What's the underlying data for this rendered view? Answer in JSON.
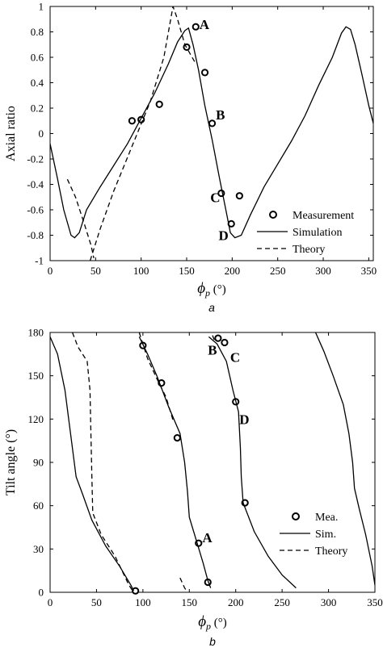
{
  "chart_data": [
    {
      "type": "line",
      "panel_label": "a",
      "xlabel_symbol": "ϕ",
      "xlabel_sub": "p",
      "xlabel_unit": " (°)",
      "ylabel": "Axial ratio",
      "xlim": [
        0,
        355
      ],
      "ylim": [
        -1,
        1
      ],
      "xticks": [
        0,
        50,
        100,
        150,
        200,
        250,
        300,
        350
      ],
      "yticks": [
        -1,
        -0.8,
        -0.6,
        -0.4,
        -0.2,
        0,
        0.2,
        0.4,
        0.6,
        0.8,
        1
      ],
      "ytick_labels": [
        "-1",
        "-0.8",
        "-0.6",
        "-0.4",
        "-0.2",
        "0",
        "0.2",
        "0.4",
        "0.6",
        "0.8",
        "1"
      ],
      "legend": {
        "position": "bottom-right",
        "entries": [
          "Measurement",
          "Simulation",
          "Theory"
        ]
      },
      "series": [
        {
          "role": "measurement",
          "style": "marker",
          "points": [
            [
              90,
              0.1
            ],
            [
              100,
              0.11
            ],
            [
              120,
              0.23
            ],
            [
              150,
              0.68
            ],
            [
              160,
              0.84
            ],
            [
              170,
              0.48
            ],
            [
              178,
              0.08
            ],
            [
              188,
              -0.47
            ],
            [
              199,
              -0.71
            ],
            [
              208,
              -0.49
            ]
          ]
        },
        {
          "role": "simulation",
          "style": "solid",
          "points": [
            [
              0,
              -0.08
            ],
            [
              8,
              -0.35
            ],
            [
              15,
              -0.6
            ],
            [
              23,
              -0.8
            ],
            [
              27,
              -0.82
            ],
            [
              32,
              -0.78
            ],
            [
              40,
              -0.6
            ],
            [
              55,
              -0.42
            ],
            [
              70,
              -0.25
            ],
            [
              85,
              -0.08
            ],
            [
              100,
              0.12
            ],
            [
              115,
              0.32
            ],
            [
              130,
              0.55
            ],
            [
              140,
              0.72
            ],
            [
              148,
              0.81
            ],
            [
              152,
              0.83
            ],
            [
              157,
              0.7
            ],
            [
              163,
              0.5
            ],
            [
              170,
              0.22
            ],
            [
              178,
              -0.05
            ],
            [
              186,
              -0.35
            ],
            [
              193,
              -0.6
            ],
            [
              198,
              -0.78
            ],
            [
              203,
              -0.82
            ],
            [
              210,
              -0.8
            ],
            [
              220,
              -0.64
            ],
            [
              235,
              -0.42
            ],
            [
              250,
              -0.24
            ],
            [
              265,
              -0.06
            ],
            [
              280,
              0.14
            ],
            [
              295,
              0.38
            ],
            [
              310,
              0.6
            ],
            [
              320,
              0.79
            ],
            [
              325,
              0.84
            ],
            [
              330,
              0.82
            ],
            [
              335,
              0.7
            ],
            [
              342,
              0.48
            ],
            [
              350,
              0.22
            ],
            [
              355,
              0.08
            ]
          ]
        },
        {
          "role": "theory",
          "style": "dashed",
          "segments": [
            [
              [
                19,
                -0.36
              ],
              [
                28,
                -0.5
              ],
              [
                38,
                -0.72
              ],
              [
                45,
                -0.88
              ],
              [
                48,
                -0.98
              ]
            ],
            [
              [
                44,
                -1.0
              ],
              [
                55,
                -0.75
              ],
              [
                70,
                -0.45
              ],
              [
                90,
                -0.1
              ],
              [
                110,
                0.25
              ],
              [
                125,
                0.6
              ],
              [
                135,
                1.0
              ],
              [
                140,
                0.9
              ],
              [
                148,
                0.7
              ],
              [
                160,
                0.55
              ]
            ]
          ]
        }
      ],
      "annotations": [
        {
          "text": "A",
          "x": 164,
          "y": 0.86
        },
        {
          "text": "B",
          "x": 182,
          "y": 0.15
        },
        {
          "text": "C",
          "x": 176,
          "y": -0.5
        },
        {
          "text": "D",
          "x": 185,
          "y": -0.8
        }
      ]
    },
    {
      "type": "line",
      "panel_label": "b",
      "xlabel_symbol": "ϕ",
      "xlabel_sub": "p",
      "xlabel_unit": " (°)",
      "ylabel": "Tilt angle (°)",
      "xlim": [
        0,
        350
      ],
      "ylim": [
        0,
        180
      ],
      "xticks": [
        0,
        50,
        100,
        150,
        200,
        250,
        300,
        350
      ],
      "yticks": [
        0,
        30,
        60,
        90,
        120,
        150,
        180
      ],
      "ytick_labels": [
        "0",
        "30",
        "60",
        "90",
        "120",
        "150",
        "180"
      ],
      "legend": {
        "position": "bottom-right",
        "entries": [
          "Mea.",
          "Sim.",
          "Theory"
        ]
      },
      "series": [
        {
          "role": "measurement",
          "style": "marker",
          "points": [
            [
              92,
              1
            ],
            [
              100,
              171
            ],
            [
              120,
              145
            ],
            [
              137,
              107
            ],
            [
              160,
              34
            ],
            [
              170,
              7
            ],
            [
              181,
              176
            ],
            [
              188,
              173
            ],
            [
              200,
              132
            ],
            [
              210,
              62
            ]
          ]
        },
        {
          "role": "simulation",
          "style": "solid",
          "segments": [
            [
              [
                0,
                177
              ],
              [
                8,
                165
              ],
              [
                16,
                140
              ],
              [
                22,
                110
              ],
              [
                28,
                80
              ],
              [
                35,
                68
              ],
              [
                45,
                50
              ],
              [
                60,
                32
              ],
              [
                75,
                18
              ],
              [
                87,
                5
              ],
              [
                90,
                1
              ]
            ],
            [
              [
                96,
                177
              ],
              [
                105,
                165
              ],
              [
                115,
                150
              ],
              [
                128,
                128
              ],
              [
                140,
                110
              ],
              [
                145,
                90
              ],
              [
                148,
                70
              ],
              [
                150,
                52
              ],
              [
                158,
                35
              ],
              [
                165,
                20
              ],
              [
                170,
                8
              ],
              [
                173,
                3
              ]
            ],
            [
              [
                171,
                177
              ],
              [
                180,
                172
              ],
              [
                190,
                160
              ],
              [
                197,
                140
              ],
              [
                203,
                125
              ],
              [
                205,
                100
              ],
              [
                206,
                80
              ],
              [
                208,
                62
              ],
              [
                220,
                42
              ],
              [
                235,
                25
              ],
              [
                250,
                12
              ],
              [
                265,
                3
              ]
            ],
            [
              [
                286,
                180
              ],
              [
                295,
                167
              ],
              [
                305,
                150
              ],
              [
                316,
                130
              ],
              [
                322,
                110
              ],
              [
                326,
                90
              ],
              [
                328,
                72
              ],
              [
                333,
                58
              ],
              [
                340,
                40
              ],
              [
                347,
                18
              ],
              [
                350,
                5
              ]
            ]
          ]
        },
        {
          "role": "theory",
          "style": "dashed",
          "segments": [
            [
              [
                24,
                180
              ],
              [
                30,
                170
              ],
              [
                40,
                160
              ],
              [
                43,
                140
              ],
              [
                44,
                110
              ],
              [
                45,
                80
              ],
              [
                46,
                55
              ],
              [
                55,
                40
              ],
              [
                70,
                25
              ],
              [
                85,
                5
              ],
              [
                90,
                0
              ]
            ],
            [
              [
                96,
                180
              ],
              [
                105,
                162
              ],
              [
                115,
                148
              ],
              [
                125,
                135
              ],
              [
                133,
                118
              ]
            ],
            [
              [
                140,
                10
              ],
              [
                145,
                3
              ],
              [
                148,
                0
              ]
            ],
            [
              [
                175,
                178
              ],
              [
                178,
                173
              ]
            ]
          ]
        }
      ],
      "annotations": [
        {
          "text": "A",
          "x": 164,
          "y": 38
        },
        {
          "text": "B",
          "x": 170,
          "y": 168
        },
        {
          "text": "C",
          "x": 194,
          "y": 163
        },
        {
          "text": "D",
          "x": 204,
          "y": 120
        }
      ]
    }
  ]
}
